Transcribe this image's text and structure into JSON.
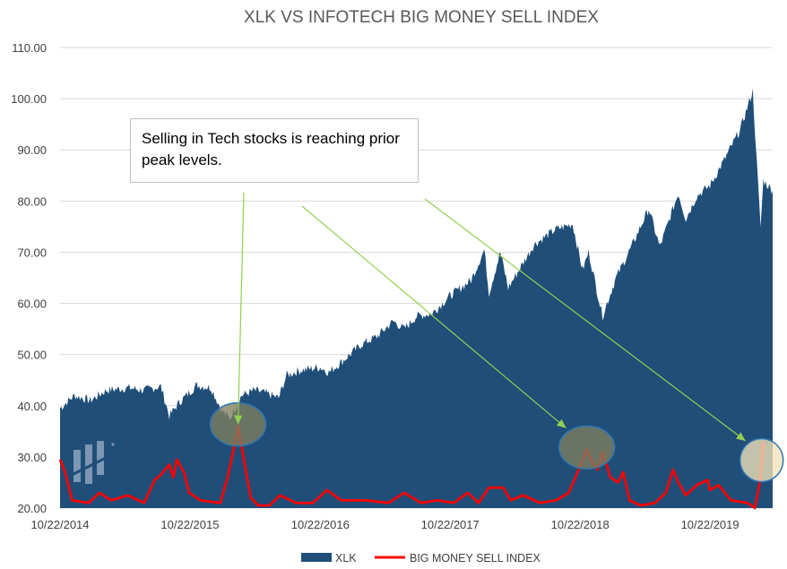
{
  "chart_data": {
    "type": "area",
    "title": "XLK VS INFOTECH BIG MONEY SELL INDEX",
    "xlabel": "",
    "ylabel": "",
    "ylim": [
      20,
      110
    ],
    "y_ticks": [
      "20.00",
      "30.00",
      "40.00",
      "50.00",
      "60.00",
      "70.00",
      "80.00",
      "90.00",
      "100.00",
      "110.00"
    ],
    "x_ticks": [
      "10/22/2014",
      "10/22/2015",
      "10/22/2016",
      "10/22/2017",
      "10/22/2018",
      "10/22/2019"
    ],
    "xlim": [
      "10/22/2014",
      "04/15/2020"
    ],
    "legend_position": "bottom",
    "grid": "horizontal",
    "annotation": "Selling in Tech stocks is reaching prior peak levels.",
    "highlight_dates": [
      "03/05/2016",
      "11/10/2018",
      "03/15/2020"
    ],
    "series": [
      {
        "name": "XLK",
        "kind": "area",
        "color": "#1f4e79",
        "points": [
          [
            "10/22/2014",
            39.5
          ],
          [
            "12/01/2014",
            42.0
          ],
          [
            "01/15/2015",
            41.0
          ],
          [
            "03/01/2015",
            43.0
          ],
          [
            "05/01/2015",
            43.5
          ],
          [
            "06/15/2015",
            43.0
          ],
          [
            "08/01/2015",
            43.8
          ],
          [
            "08/25/2015",
            38.0
          ],
          [
            "09/20/2015",
            40.5
          ],
          [
            "11/10/2015",
            44.0
          ],
          [
            "12/20/2015",
            43.5
          ],
          [
            "01/20/2016",
            39.0
          ],
          [
            "02/11/2016",
            37.5
          ],
          [
            "03/15/2016",
            42.0
          ],
          [
            "04/20/2016",
            43.0
          ],
          [
            "05/20/2016",
            42.5
          ],
          [
            "06/27/2016",
            41.5
          ],
          [
            "07/20/2016",
            46.0
          ],
          [
            "09/01/2016",
            47.0
          ],
          [
            "10/22/2016",
            47.5
          ],
          [
            "11/15/2016",
            46.5
          ],
          [
            "12/20/2016",
            48.5
          ],
          [
            "02/15/2017",
            52.0
          ],
          [
            "03/30/2017",
            53.5
          ],
          [
            "05/15/2017",
            56.5
          ],
          [
            "06/15/2017",
            55.0
          ],
          [
            "07/20/2017",
            57.5
          ],
          [
            "09/01/2017",
            58.0
          ],
          [
            "10/22/2017",
            61.5
          ],
          [
            "12/20/2017",
            64.5
          ],
          [
            "01/26/2018",
            70.5
          ],
          [
            "02/08/2018",
            62.0
          ],
          [
            "03/12/2018",
            70.0
          ],
          [
            "04/03/2018",
            63.0
          ],
          [
            "06/15/2018",
            71.5
          ],
          [
            "08/15/2018",
            74.5
          ],
          [
            "10/01/2018",
            75.5
          ],
          [
            "10/29/2018",
            66.5
          ],
          [
            "11/15/2018",
            70.0
          ],
          [
            "12/24/2018",
            57.5
          ],
          [
            "01/31/2019",
            65.0
          ],
          [
            "03/15/2019",
            71.0
          ],
          [
            "05/03/2019",
            78.5
          ],
          [
            "06/03/2019",
            71.0
          ],
          [
            "07/25/2019",
            81.5
          ],
          [
            "08/15/2019",
            76.5
          ],
          [
            "09/15/2019",
            81.0
          ],
          [
            "10/22/2019",
            83.0
          ],
          [
            "12/01/2019",
            88.0
          ],
          [
            "01/15/2020",
            94.0
          ],
          [
            "02/19/2020",
            101.5
          ],
          [
            "03/01/2020",
            88.0
          ],
          [
            "03/12/2020",
            75.0
          ],
          [
            "03/20/2020",
            84.0
          ],
          [
            "04/15/2020",
            82.0
          ]
        ]
      },
      {
        "name": "BIG MONEY SELL INDEX",
        "kind": "line",
        "color": "#ff0000",
        "points": [
          [
            "10/22/2014",
            29.5
          ],
          [
            "11/05/2014",
            27.0
          ],
          [
            "11/25/2014",
            21.5
          ],
          [
            "01/10/2015",
            21.0
          ],
          [
            "02/10/2015",
            23.0
          ],
          [
            "03/15/2015",
            21.5
          ],
          [
            "05/01/2015",
            22.5
          ],
          [
            "06/15/2015",
            21.0
          ],
          [
            "07/15/2015",
            25.5
          ],
          [
            "08/01/2015",
            26.5
          ],
          [
            "08/25/2015",
            28.5
          ],
          [
            "09/05/2015",
            26.0
          ],
          [
            "09/15/2015",
            29.5
          ],
          [
            "10/05/2015",
            27.0
          ],
          [
            "10/20/2015",
            23.0
          ],
          [
            "11/20/2015",
            21.5
          ],
          [
            "01/15/2016",
            21.0
          ],
          [
            "02/05/2016",
            26.0
          ],
          [
            "02/20/2016",
            31.0
          ],
          [
            "03/05/2016",
            36.0
          ],
          [
            "03/20/2016",
            30.0
          ],
          [
            "04/10/2016",
            22.0
          ],
          [
            "05/01/2016",
            20.5
          ],
          [
            "06/01/2016",
            20.5
          ],
          [
            "07/01/2016",
            22.5
          ],
          [
            "08/15/2016",
            21.0
          ],
          [
            "10/01/2016",
            21.0
          ],
          [
            "11/10/2016",
            23.5
          ],
          [
            "12/20/2016",
            21.5
          ],
          [
            "03/01/2017",
            21.5
          ],
          [
            "05/01/2017",
            21.0
          ],
          [
            "06/15/2017",
            23.0
          ],
          [
            "08/01/2017",
            21.0
          ],
          [
            "09/15/2017",
            21.5
          ],
          [
            "11/01/2017",
            21.0
          ],
          [
            "12/10/2017",
            23.0
          ],
          [
            "01/10/2018",
            21.0
          ],
          [
            "02/08/2018",
            24.0
          ],
          [
            "03/20/2018",
            24.0
          ],
          [
            "04/10/2018",
            21.5
          ],
          [
            "05/15/2018",
            22.5
          ],
          [
            "07/01/2018",
            21.0
          ],
          [
            "08/15/2018",
            21.5
          ],
          [
            "09/20/2018",
            23.0
          ],
          [
            "10/15/2018",
            27.0
          ],
          [
            "11/10/2018",
            31.5
          ],
          [
            "11/25/2018",
            29.0
          ],
          [
            "12/10/2018",
            27.5
          ],
          [
            "12/24/2018",
            31.0
          ],
          [
            "01/15/2019",
            26.0
          ],
          [
            "02/05/2019",
            25.0
          ],
          [
            "02/20/2019",
            27.0
          ],
          [
            "03/10/2019",
            21.5
          ],
          [
            "04/10/2019",
            20.5
          ],
          [
            "05/20/2019",
            21.0
          ],
          [
            "06/20/2019",
            23.0
          ],
          [
            "07/10/2019",
            27.5
          ],
          [
            "07/25/2019",
            25.0
          ],
          [
            "08/15/2019",
            22.5
          ],
          [
            "09/15/2019",
            24.5
          ],
          [
            "10/15/2019",
            25.5
          ],
          [
            "10/22/2019",
            23.5
          ],
          [
            "11/15/2019",
            24.5
          ],
          [
            "12/20/2019",
            21.5
          ],
          [
            "02/05/2020",
            21.0
          ],
          [
            "02/25/2020",
            20.0
          ],
          [
            "03/03/2020",
            22.5
          ],
          [
            "03/10/2020",
            25.0
          ],
          [
            "03/15/2020",
            29.0
          ],
          [
            "03/20/2020",
            33.0
          ]
        ]
      }
    ]
  }
}
